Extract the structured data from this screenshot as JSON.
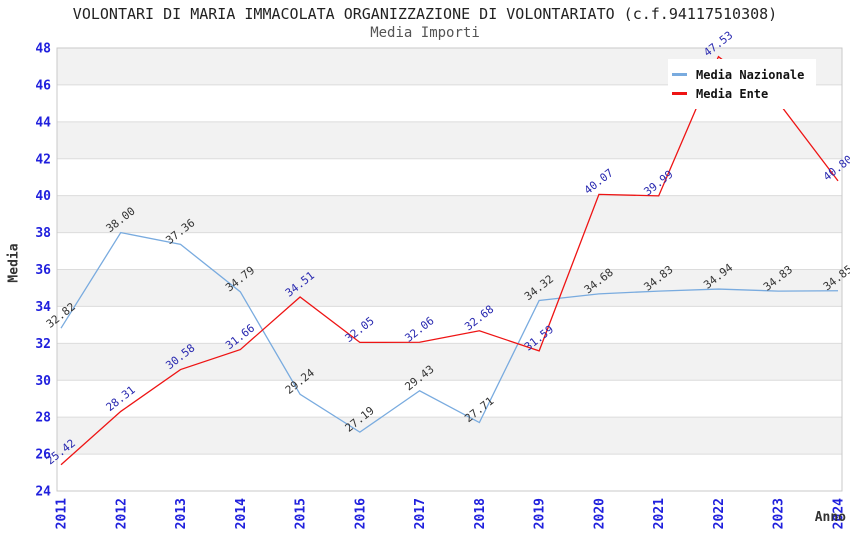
{
  "title": "VOLONTARI DI MARIA IMMACOLATA ORGANIZZAZIONE DI VOLONTARIATO (c.f.94117510308)",
  "subtitle": "Media Importi",
  "chart_data": {
    "type": "line",
    "title": "VOLONTARI DI MARIA IMMACOLATA ORGANIZZAZIONE DI VOLONTARIATO (c.f.94117510308)",
    "subtitle": "Media Importi",
    "xlabel": "Anno",
    "ylabel": "Media",
    "x": [
      "2011",
      "2012",
      "2013",
      "2014",
      "2015",
      "2016",
      "2017",
      "2018",
      "2019",
      "2020",
      "2021",
      "2022",
      "2023",
      "2024"
    ],
    "ylim": [
      24,
      48
    ],
    "ytick_step": 2,
    "y_ticks": [
      "24",
      "26",
      "28",
      "30",
      "32",
      "34",
      "36",
      "38",
      "40",
      "42",
      "44",
      "46",
      "48"
    ],
    "grid": "horizontal alternating bands, gridline every 2 units",
    "legend_position": "top-right",
    "band_color": "#f2f2f2",
    "series": [
      {
        "name": "Media Nazionale",
        "color": "#79abdf",
        "label_color": "#333333",
        "values": [
          32.82,
          38.0,
          37.36,
          34.79,
          29.24,
          27.19,
          29.43,
          27.71,
          34.32,
          34.68,
          34.83,
          34.94,
          34.83,
          34.85
        ],
        "labels": [
          "32.82",
          "38.00",
          "37.36",
          "34.79",
          "29.24",
          "27.19",
          "29.43",
          "27.71",
          "34.32",
          "34.68",
          "34.83",
          "34.94",
          "34.83",
          "34.85"
        ]
      },
      {
        "name": "Media Ente",
        "color": "#ee1414",
        "label_color": "#2929b0",
        "values": [
          25.42,
          28.31,
          30.58,
          31.66,
          34.51,
          32.05,
          32.06,
          32.68,
          31.59,
          40.07,
          39.99,
          47.53,
          45.07,
          40.8
        ],
        "labels": [
          "25.42",
          "28.31",
          "30.58",
          "31.66",
          "34.51",
          "32.05",
          "32.06",
          "32.68",
          "31.59",
          "40.07",
          "39.99",
          "47.53",
          "",
          "40.80"
        ]
      }
    ]
  },
  "colors": {
    "tick_label": "#2020dd",
    "gridline": "#dcdcdc",
    "plot_border": "#c9c9c9"
  }
}
